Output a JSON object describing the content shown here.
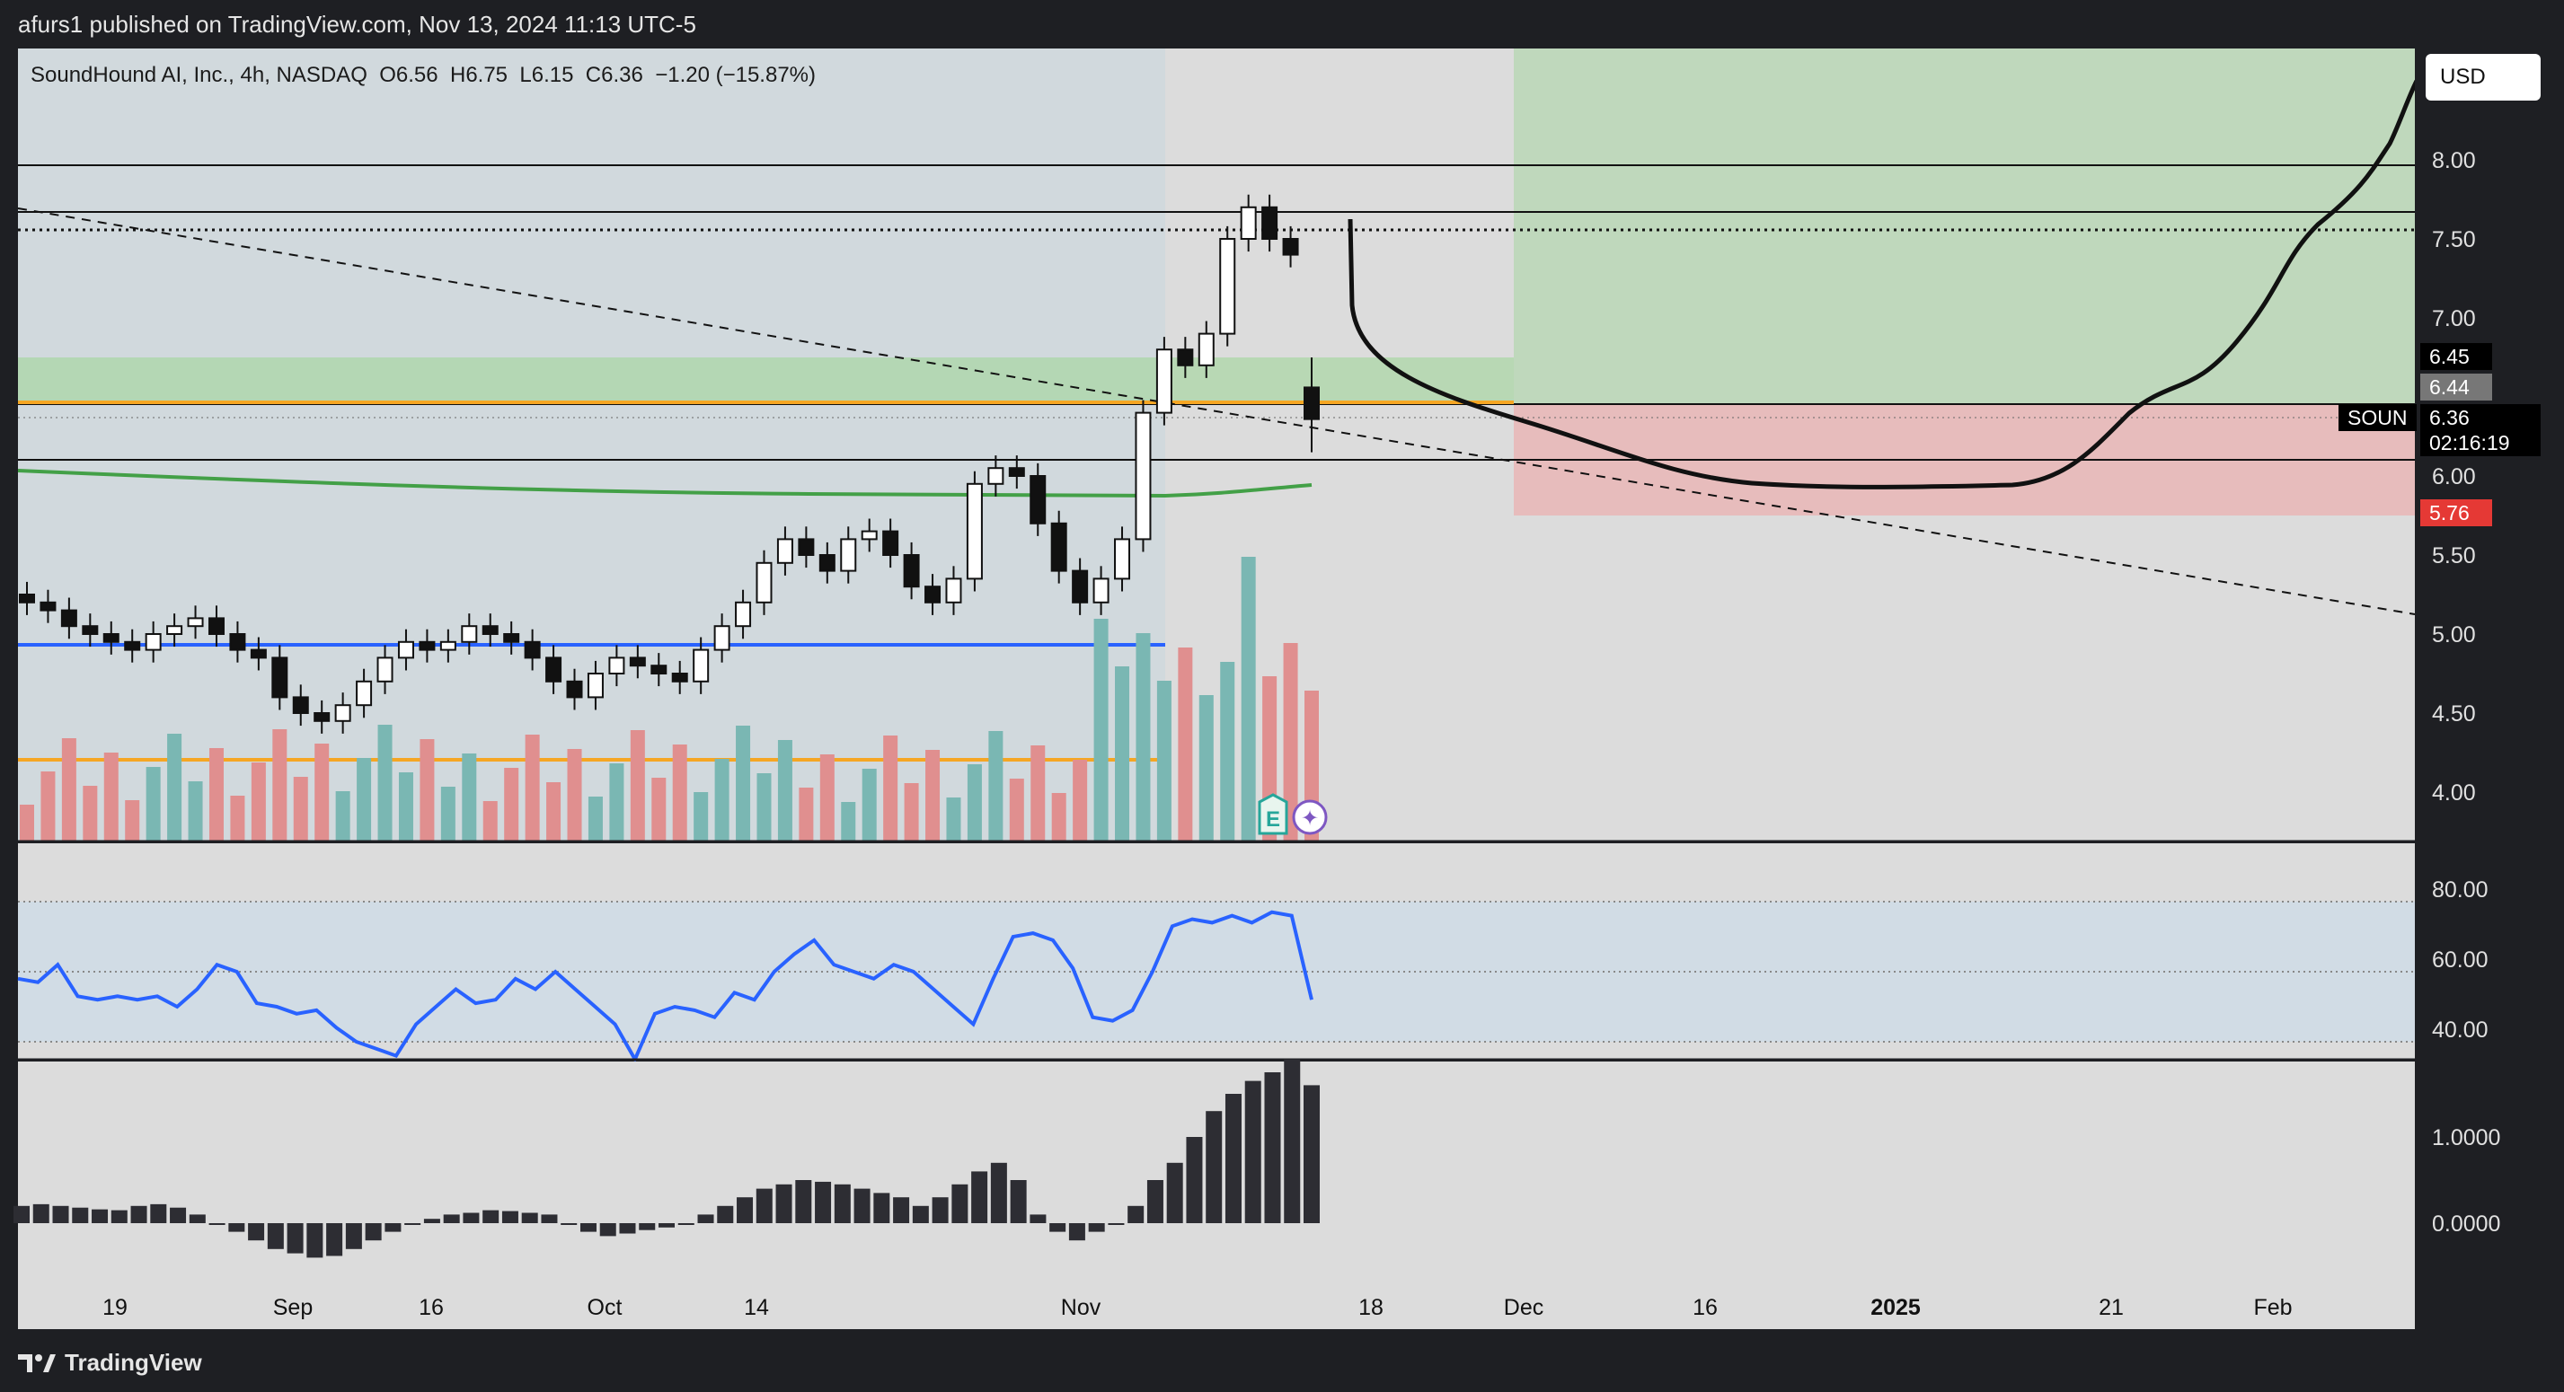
{
  "publish_line": "afurs1 published on TradingView.com, Nov 13, 2024 11:13 UTC-5",
  "legend": {
    "symbol": "SoundHound AI, Inc., 4h, NASDAQ",
    "o_label": "O",
    "o_val": "6.56",
    "h_label": "H",
    "h_val": "6.75",
    "l_label": "L",
    "l_val": "6.15",
    "c_label": "C",
    "c_val": "6.36",
    "change": "−1.20 (−15.87%)"
  },
  "currency": "USD",
  "price_labels": [
    "8.00",
    "7.50",
    "7.00",
    "6.00",
    "5.50",
    "5.00",
    "4.50",
    "4.00"
  ],
  "tags": {
    "top_price": "6.45",
    "gray_price": "6.44",
    "symbol": "SOUN",
    "last_price": "6.36",
    "countdown": "02:16:19",
    "stop_price": "5.76"
  },
  "rsi_labels": [
    "80.00",
    "60.00",
    "40.00"
  ],
  "macd_labels": [
    "1.0000",
    "0.0000"
  ],
  "time_labels": [
    "19",
    "Sep",
    "16",
    "Oct",
    "14",
    "Nov",
    "18",
    "Dec",
    "16",
    "2025",
    "21",
    "Feb"
  ],
  "brand": "TradingView",
  "colors": {
    "up_volume": "#7ab7b3",
    "down_volume": "#e08f8f",
    "blue_line": "#2962ff",
    "orange_line": "#f5a623",
    "green_ma": "#43a047",
    "profit_zone": "#a8d5a2",
    "loss_zone": "#f0a3a3",
    "pane_bg": "#dcdcdc"
  },
  "chart_data": [
    {
      "type": "candlestick",
      "title": "SoundHound AI, Inc., 4h, NASDAQ",
      "ylim": [
        3.75,
        8.5
      ],
      "key_levels": [
        7.99,
        7.69,
        7.57,
        6.45,
        6.4,
        6.05,
        4.2
      ],
      "support_level": 4.93,
      "last": {
        "open": 6.56,
        "high": 6.75,
        "low": 6.15,
        "close": 6.36
      },
      "closes": [
        5.2,
        5.15,
        5.05,
        5.0,
        4.95,
        4.9,
        5.0,
        5.05,
        5.1,
        5.0,
        4.9,
        4.85,
        4.6,
        4.5,
        4.45,
        4.55,
        4.7,
        4.85,
        4.95,
        4.9,
        4.95,
        5.05,
        5.0,
        4.95,
        4.85,
        4.7,
        4.6,
        4.75,
        4.85,
        4.8,
        4.75,
        4.7,
        4.9,
        5.05,
        5.2,
        5.45,
        5.6,
        5.5,
        5.4,
        5.6,
        5.65,
        5.5,
        5.3,
        5.2,
        5.35,
        5.95,
        6.05,
        6.0,
        5.7,
        5.4,
        5.2,
        5.35,
        5.6,
        6.4,
        6.8,
        6.7,
        6.9,
        7.5,
        7.7,
        7.5,
        7.4,
        6.36
      ]
    },
    {
      "type": "line",
      "title": "RSI",
      "ylim": [
        30,
        85
      ],
      "values": [
        58,
        57,
        62,
        53,
        52,
        53,
        52,
        53,
        50,
        55,
        62,
        60,
        51,
        50,
        48,
        49,
        44,
        40,
        38,
        36,
        45,
        50,
        55,
        51,
        52,
        58,
        55,
        60,
        55,
        50,
        45,
        35,
        48,
        50,
        49,
        47,
        54,
        52,
        60,
        65,
        69,
        62,
        60,
        58,
        62,
        60,
        55,
        50,
        45,
        58,
        70,
        71,
        69,
        61,
        47,
        46,
        49,
        60,
        73,
        75,
        74,
        76,
        74,
        77,
        76,
        52
      ]
    },
    {
      "type": "bar",
      "title": "MACD histogram",
      "ylim": [
        -0.5,
        1.9
      ],
      "values": [
        0.2,
        0.22,
        0.2,
        0.18,
        0.16,
        0.15,
        0.2,
        0.22,
        0.18,
        0.1,
        0.0,
        -0.1,
        -0.2,
        -0.3,
        -0.35,
        -0.4,
        -0.38,
        -0.3,
        -0.2,
        -0.1,
        0.0,
        0.05,
        0.1,
        0.12,
        0.15,
        0.14,
        0.12,
        0.1,
        0.0,
        -0.1,
        -0.15,
        -0.12,
        -0.08,
        -0.05,
        0.0,
        0.1,
        0.2,
        0.3,
        0.4,
        0.45,
        0.5,
        0.48,
        0.45,
        0.4,
        0.35,
        0.3,
        0.2,
        0.3,
        0.45,
        0.6,
        0.7,
        0.5,
        0.1,
        -0.1,
        -0.2,
        -0.1,
        0.0,
        0.2,
        0.5,
        0.7,
        1.0,
        1.3,
        1.5,
        1.65,
        1.75,
        1.9,
        1.6
      ]
    }
  ]
}
